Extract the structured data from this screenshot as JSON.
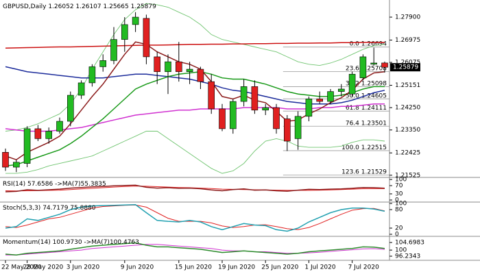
{
  "chart_data": {
    "type": "candlestick",
    "title": "GBPUSD,Daily",
    "categories": [
      "22 May 2020",
      null,
      "28 May 2020",
      null,
      null,
      null,
      "3 Jun 2020",
      null,
      null,
      null,
      null,
      "9 Jun 2020",
      null,
      null,
      null,
      null,
      "15 Jun 2020",
      null,
      null,
      null,
      "19 Jun 2020",
      null,
      null,
      null,
      "25 Jun 2020",
      null,
      null,
      null,
      "1 Jul 2020",
      null,
      null,
      null,
      "7 Jul 2020",
      null,
      null,
      null
    ],
    "ohlc": [
      [
        1.2245,
        1.226,
        1.217,
        1.2185
      ],
      [
        1.2185,
        1.2215,
        1.2165,
        1.2205
      ],
      [
        1.22,
        1.235,
        1.2185,
        1.234
      ],
      [
        1.234,
        1.2355,
        1.229,
        1.23
      ],
      [
        1.23,
        1.2345,
        1.228,
        1.233
      ],
      [
        1.233,
        1.2385,
        1.232,
        1.237
      ],
      [
        1.237,
        1.249,
        1.235,
        1.2475
      ],
      [
        1.2475,
        1.2535,
        1.246,
        1.2525
      ],
      [
        1.2525,
        1.26,
        1.251,
        1.259
      ],
      [
        1.259,
        1.264,
        1.257,
        1.2615
      ],
      [
        1.2615,
        1.275,
        1.26,
        1.27
      ],
      [
        1.27,
        1.279,
        1.265,
        1.276
      ],
      [
        1.276,
        1.281,
        1.273,
        1.279
      ],
      [
        1.2785,
        1.28,
        1.26,
        1.263
      ],
      [
        1.263,
        1.265,
        1.252,
        1.257
      ],
      [
        1.257,
        1.264,
        1.248,
        1.261
      ],
      [
        1.261,
        1.269,
        1.253,
        1.257
      ],
      [
        1.257,
        1.261,
        1.252,
        1.258
      ],
      [
        1.258,
        1.259,
        1.25,
        1.253
      ],
      [
        1.253,
        1.256,
        1.24,
        1.242
      ],
      [
        1.242,
        1.244,
        1.233,
        1.234
      ],
      [
        1.234,
        1.246,
        1.232,
        1.245
      ],
      [
        1.245,
        1.254,
        1.243,
        1.251
      ],
      [
        1.251,
        1.2535,
        1.24,
        1.2415
      ],
      [
        1.2415,
        1.244,
        1.2395,
        1.2425
      ],
      [
        1.2425,
        1.244,
        1.232,
        1.234
      ],
      [
        1.238,
        1.2395,
        1.225,
        1.229
      ],
      [
        1.23,
        1.241,
        1.2255,
        1.239
      ],
      [
        1.239,
        1.247,
        1.237,
        1.246
      ],
      [
        1.246,
        1.249,
        1.244,
        1.245
      ],
      [
        1.245,
        1.25,
        1.244,
        1.249
      ],
      [
        1.249,
        1.252,
        1.247,
        1.25
      ],
      [
        1.248,
        1.257,
        1.247,
        1.256
      ],
      [
        1.2545,
        1.264,
        1.2535,
        1.263
      ],
      [
        1.26,
        1.2667,
        1.2595,
        1.2605
      ],
      [
        1.26052,
        1.26107,
        1.25665,
        1.25879
      ]
    ],
    "up_color": "#22bb22",
    "down_color": "#e02020",
    "series": [
      {
        "color": "#6fc46f",
        "values": [
          1.233,
          1.2335,
          1.2345,
          1.236,
          1.238,
          1.24,
          1.244,
          1.25,
          1.258,
          1.265,
          1.272,
          1.278,
          1.282,
          1.2845,
          1.284,
          1.283,
          1.281,
          1.279,
          1.276,
          1.272,
          1.27,
          1.269,
          1.268,
          1.267,
          1.266,
          1.265,
          1.263,
          1.261,
          1.26,
          1.2595,
          1.2605,
          1.262,
          1.264,
          1.266,
          1.2675,
          1.268
        ]
      },
      {
        "color": "#6fc46f",
        "values": [
          1.216,
          1.216,
          1.2165,
          1.2175,
          1.219,
          1.22,
          1.221,
          1.222,
          1.223,
          1.225,
          1.227,
          1.229,
          1.231,
          1.233,
          1.233,
          1.23,
          1.227,
          1.224,
          1.221,
          1.218,
          1.216,
          1.217,
          1.22,
          1.225,
          1.229,
          1.23,
          1.229,
          1.227,
          1.2265,
          1.2265,
          1.2265,
          1.227,
          1.2285,
          1.2295,
          1.2295,
          1.229
        ]
      },
      {
        "color": "#d030d0",
        "values": [
          1.234,
          1.2335,
          1.233,
          1.233,
          1.233,
          1.2335,
          1.234,
          1.2345,
          1.2355,
          1.2365,
          1.2375,
          1.2385,
          1.2395,
          1.24,
          1.2405,
          1.241,
          1.2415,
          1.2415,
          1.242,
          1.242,
          1.242,
          1.242,
          1.2425,
          1.2425,
          1.2425,
          1.2425,
          1.242,
          1.242,
          1.242,
          1.2425,
          1.2425,
          1.243,
          1.243,
          1.2435,
          1.244,
          1.244
        ]
      },
      {
        "color": "#1a2a9a",
        "values": [
          1.259,
          1.258,
          1.257,
          1.2565,
          1.256,
          1.2555,
          1.255,
          1.2545,
          1.2545,
          1.2545,
          1.255,
          1.2555,
          1.256,
          1.256,
          1.2555,
          1.255,
          1.2545,
          1.254,
          1.253,
          1.252,
          1.2505,
          1.2495,
          1.249,
          1.248,
          1.247,
          1.246,
          1.245,
          1.2445,
          1.244,
          1.244,
          1.244,
          1.2445,
          1.2455,
          1.247,
          1.2485,
          1.2495
        ]
      },
      {
        "color": "#179917",
        "values": [
          1.219,
          1.2195,
          1.221,
          1.2225,
          1.224,
          1.2255,
          1.228,
          1.231,
          1.2345,
          1.238,
          1.242,
          1.246,
          1.25,
          1.252,
          1.2535,
          1.255,
          1.256,
          1.2565,
          1.257,
          1.256,
          1.2545,
          1.254,
          1.254,
          1.253,
          1.252,
          1.2505,
          1.249,
          1.248,
          1.2475,
          1.247,
          1.247,
          1.2475,
          1.2485,
          1.25,
          1.251,
          1.251
        ]
      },
      {
        "color": "#cc1010",
        "values": [
          1.2665,
          1.2666,
          1.2667,
          1.2668,
          1.2669,
          1.267,
          1.267,
          1.2671,
          1.2672,
          1.2673,
          1.2674,
          1.2675,
          1.2676,
          1.2677,
          1.2677,
          1.2678,
          1.2679,
          1.268,
          1.268,
          1.2681,
          1.2681,
          1.2682,
          1.2682,
          1.2683,
          1.2683,
          1.2684,
          1.2684,
          1.2685,
          1.2685,
          1.2686,
          1.2686,
          1.2687,
          1.2687,
          1.2688,
          1.2688,
          1.2688
        ]
      },
      {
        "color": "#8b1a1a",
        "values": [
          1.223,
          1.2215,
          1.2245,
          1.2265,
          1.2285,
          1.231,
          1.236,
          1.2415,
          1.247,
          1.252,
          1.258,
          1.264,
          1.269,
          1.268,
          1.265,
          1.263,
          1.261,
          1.26,
          1.258,
          1.253,
          1.247,
          1.246,
          1.2475,
          1.2455,
          1.2445,
          1.241,
          1.237,
          1.2375,
          1.24,
          1.242,
          1.2445,
          1.2465,
          1.2495,
          1.254,
          1.2565,
          1.257
        ]
      }
    ],
    "fib_levels": [
      {
        "ratio": "0.0",
        "price": 1.26694
      },
      {
        "ratio": "23.6",
        "price": 1.25708
      },
      {
        "ratio": "38.2",
        "price": 1.25098
      },
      {
        "ratio": "50.0",
        "price": 1.24605
      },
      {
        "ratio": "61.8",
        "price": 1.24111
      },
      {
        "ratio": "76.4",
        "price": 1.23501
      },
      {
        "ratio": "100.0",
        "price": 1.22515
      },
      {
        "ratio": "123.6",
        "price": 1.21529
      }
    ],
    "ylim": [
      1.21464,
      1.28591
    ],
    "yticks": [
      {
        "value": 1.279,
        "label": "1.27900"
      },
      1.26975,
      1.26075,
      1.25151,
      {
        "value": 1.2425,
        "label": "1.24250"
      },
      {
        "value": 1.2335,
        "label": "1.23350"
      },
      1.22425,
      1.21525
    ],
    "rsi": {
      "title": "RSI(14)",
      "ma_title": "->MA(7)",
      "ylim": [
        0,
        100
      ],
      "yticks": [
        0,
        30,
        70,
        100
      ],
      "color": "#8b1a1a",
      "ma_color": "#e02020",
      "values": [
        40,
        42,
        50,
        47,
        50,
        53,
        58,
        61,
        64,
        66,
        69,
        71,
        72,
        62,
        58,
        60,
        57,
        58,
        55,
        49,
        45,
        51,
        54,
        48,
        49,
        45,
        43,
        48,
        52,
        51,
        53,
        54,
        57,
        61,
        60,
        57.6586
      ],
      "ma_values": [
        45,
        44,
        45,
        46,
        47,
        48,
        51,
        54,
        57,
        60,
        63,
        66,
        68,
        67,
        65,
        63,
        61,
        60,
        58,
        56,
        53,
        52,
        51,
        50,
        49,
        48,
        47,
        47,
        47,
        48,
        49,
        51,
        53,
        55,
        56,
        55.3835
      ]
    },
    "stoch": {
      "title": "Stoch(5,3,3)",
      "ylim": [
        0,
        100
      ],
      "yticks": [
        0,
        20,
        80,
        100
      ],
      "color": "#20a0b0",
      "ma_color": "#e02020",
      "values": [
        20,
        25,
        50,
        45,
        55,
        65,
        80,
        88,
        92,
        93,
        94,
        95,
        96,
        70,
        45,
        42,
        40,
        45,
        40,
        25,
        15,
        25,
        35,
        30,
        28,
        15,
        10,
        20,
        40,
        55,
        70,
        80,
        85,
        85,
        82,
        74.7179
      ],
      "ma_values": [
        25,
        22,
        30,
        40,
        50,
        55,
        65,
        75,
        85,
        90,
        92,
        94,
        95,
        88,
        70,
        52,
        42,
        42,
        42,
        37,
        27,
        22,
        25,
        30,
        31,
        25,
        18,
        15,
        22,
        35,
        50,
        65,
        78,
        83,
        84,
        75.888
      ],
      "ma_value_labels": [
        null,
        null,
        null,
        null,
        null,
        null,
        null,
        null,
        null,
        null,
        null,
        null,
        null,
        null,
        null,
        null,
        null,
        null,
        null,
        null,
        null,
        null,
        null,
        null,
        null,
        null,
        null,
        null,
        null,
        null,
        null,
        null,
        null,
        null,
        null,
        "75.8880"
      ]
    },
    "momentum": {
      "title": "Momentum(14)",
      "ma_title": "->MA(7)",
      "ylim": [
        94.54,
        107.66
      ],
      "yticks": [
        96.2343,
        100,
        104.6983
      ],
      "color": "#2a8a2a",
      "ma_color": "#d030d0",
      "values": [
        97.5,
        97,
        98,
        98.5,
        99,
        99.5,
        100.5,
        101.5,
        102.5,
        103,
        103.5,
        104,
        104.5,
        103,
        102,
        102,
        101.5,
        101,
        100.5,
        99.5,
        98.5,
        99,
        99.5,
        99,
        98.5,
        98,
        97.5,
        98,
        99,
        99.5,
        100,
        100.5,
        101,
        102,
        101.8,
        100.973
      ],
      "value_labels": [
        null,
        null,
        null,
        null,
        null,
        null,
        null,
        null,
        null,
        null,
        null,
        null,
        null,
        null,
        null,
        null,
        null,
        null,
        null,
        null,
        null,
        null,
        null,
        null,
        null,
        null,
        null,
        null,
        null,
        null,
        null,
        null,
        null,
        null,
        null,
        "100.9730"
      ],
      "ma_values": [
        97,
        97,
        97.5,
        98,
        98.5,
        99,
        99.5,
        100,
        101,
        101.5,
        102,
        102.5,
        103,
        103.5,
        103.5,
        103,
        102.5,
        102,
        101.5,
        101,
        100,
        99.5,
        99.5,
        99,
        99,
        98.5,
        98,
        98,
        98.3,
        98.7,
        99.2,
        99.7,
        100.2,
        100.7,
        100.9,
        100.4763
      ]
    }
  }
}
